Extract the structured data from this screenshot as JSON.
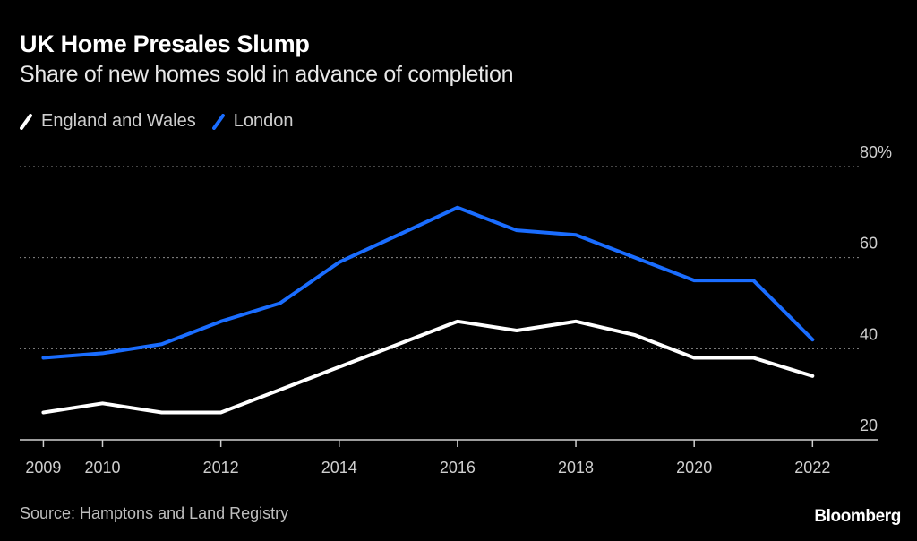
{
  "header": {
    "title": "UK Home Presales Slump",
    "subtitle": "Share of new homes sold in advance of completion"
  },
  "footer": {
    "source": "Source: Hamptons and Land Registry",
    "brand": "Bloomberg"
  },
  "chart_data": {
    "type": "line",
    "title": "UK Home Presales Slump",
    "subtitle": "Share of new homes sold in advance of completion",
    "xlabel": "",
    "ylabel": "",
    "x": [
      2009,
      2010,
      2011,
      2012,
      2013,
      2014,
      2015,
      2016,
      2017,
      2018,
      2019,
      2020,
      2021,
      2022
    ],
    "x_ticks": [
      "2009",
      "2010",
      "2012",
      "2014",
      "2016",
      "2018",
      "2020",
      "2022"
    ],
    "y_ticks": [
      "20",
      "40",
      "60",
      "80%"
    ],
    "ylim": [
      20,
      80
    ],
    "xlim": [
      2008.6,
      2023.1
    ],
    "grid": true,
    "legend_position": "top-left",
    "series": [
      {
        "name": "England and Wales",
        "color": "#ffffff",
        "values": [
          26,
          28,
          26,
          26,
          31,
          36,
          41,
          46,
          44,
          46,
          43,
          38,
          38,
          34
        ]
      },
      {
        "name": "London",
        "color": "#1a6dff",
        "values": [
          38,
          39,
          41,
          46,
          50,
          59,
          65,
          71,
          66,
          65,
          60,
          55,
          55,
          42
        ]
      }
    ]
  }
}
